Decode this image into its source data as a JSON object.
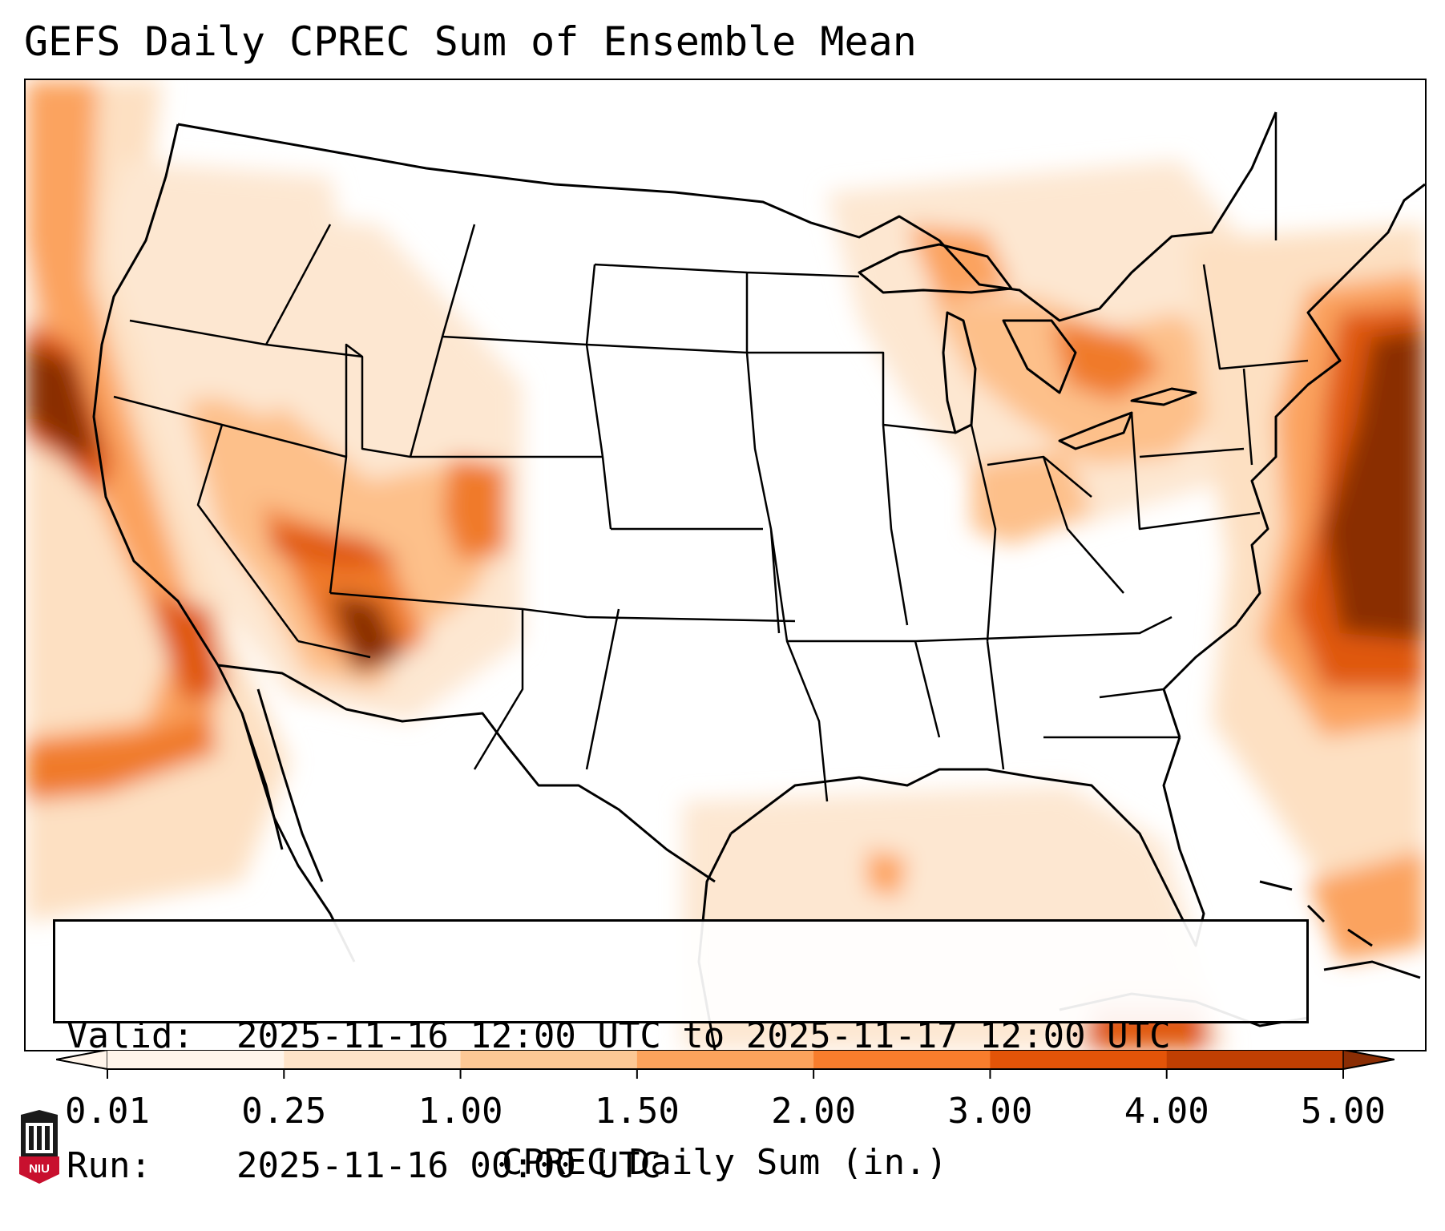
{
  "title": "GEFS Daily CPREC Sum of Ensemble Mean",
  "info": {
    "valid_label": "Valid:",
    "valid_value": "2025-11-16 12:00 UTC to 2025-11-17 12:00 UTC",
    "run_label": "Run:",
    "run_value": "2025-11-16 00:00 UTC"
  },
  "colorbar": {
    "label": "CPREC Daily Sum (in.)",
    "ticks": [
      "0.01",
      "0.25",
      "1.00",
      "1.50",
      "2.00",
      "3.00",
      "4.00",
      "5.00"
    ],
    "colors": [
      "#fff5eb",
      "#fee3c8",
      "#fdc895",
      "#fda35c",
      "#f87d2c",
      "#e35408",
      "#c03f02",
      "#8a2d04"
    ],
    "extend": "both"
  },
  "logo": {
    "text": "NIU",
    "color": "#c8102e"
  },
  "map": {
    "region": "Contiguous United States",
    "projection": "Lambert Conformal",
    "base_color": "#ffffff",
    "line_color": "#000000"
  }
}
